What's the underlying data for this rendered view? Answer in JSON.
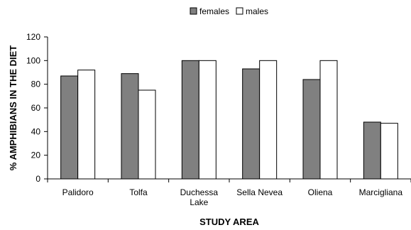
{
  "chart_data": {
    "type": "bar",
    "title": "",
    "xlabel": "STUDY AREA",
    "ylabel": "% AMPHIBIANS IN THE DIET",
    "ylim": [
      0,
      120
    ],
    "yticks": [
      0,
      20,
      40,
      60,
      80,
      100,
      120
    ],
    "categories": [
      [
        "Palidoro"
      ],
      [
        "Tolfa"
      ],
      [
        "Duchessa",
        "Lake"
      ],
      [
        "Sella Nevea"
      ],
      [
        "Oliena"
      ],
      [
        "Marcigliana"
      ]
    ],
    "series": [
      {
        "name": "females",
        "color": "#808080",
        "values": [
          87,
          89,
          100,
          93,
          84,
          48
        ]
      },
      {
        "name": "males",
        "color": "#ffffff",
        "values": [
          92,
          75,
          100,
          100,
          100,
          47
        ]
      }
    ],
    "legend": {
      "position": "top-center"
    },
    "grid": false
  }
}
